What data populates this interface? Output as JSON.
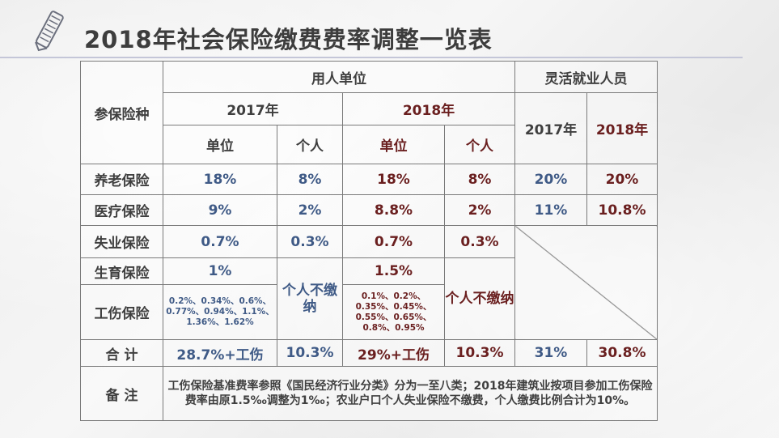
{
  "title": "2018年社会保险缴费费率调整一览表",
  "table": {
    "corner": "参保险种",
    "employer": "用人单位",
    "flexible": "灵活就业人员",
    "year2017": "2017年",
    "year2018": "2018年",
    "unit": "单位",
    "personal": "个人",
    "rows": {
      "pension": {
        "label": "养老保险",
        "e17u": "18%",
        "e17p": "8%",
        "e18u": "18%",
        "e18p": "8%",
        "f17": "20%",
        "f18": "20%"
      },
      "medical": {
        "label": "医疗保险",
        "e17u": "9%",
        "e17p": "2%",
        "e18u": "8.8%",
        "e18p": "2%",
        "f17": "11%",
        "f18": "10.8%"
      },
      "unemployment": {
        "label": "失业保险",
        "e17u": "0.7%",
        "e17p": "0.3%",
        "e18u": "0.7%",
        "e18p": "0.3%"
      },
      "maternity": {
        "label": "生育保险",
        "e17u": "1%",
        "e18u": "1.5%"
      },
      "injury": {
        "label": "工伤保险",
        "e17u": "0.2%、0.34%、0.6%、0.77%、0.94%、1.1%、1.36%、1.62%",
        "e18u": "0.1%、0.2%、0.35%、0.45%、0.55%、0.65%、0.8%、0.95%"
      },
      "no_pay": "个人不缴纳",
      "total": {
        "label": "合 计",
        "e17u": "28.7%+工伤",
        "e17p": "10.3%",
        "e18u": "29%+工伤",
        "e18p": "10.3%",
        "f17": "31%",
        "f18": "30.8%"
      }
    },
    "note_label": "备 注",
    "note": "工伤保险基准费率参照《国民经济行业分类》分为一至八类；2018年建筑业按项目参加工伤保险费率由原1.5‰调整为1‰；农业户口个人失业保险不缴费，个人缴费比例合计为10%。"
  },
  "colors": {
    "value2017": "#3f5a86",
    "value2018": "#6a1f1f",
    "title": "#3d3d3d",
    "rule": "#c4c6d8"
  },
  "icons": {
    "logo": "pencil-notebook-icon"
  }
}
